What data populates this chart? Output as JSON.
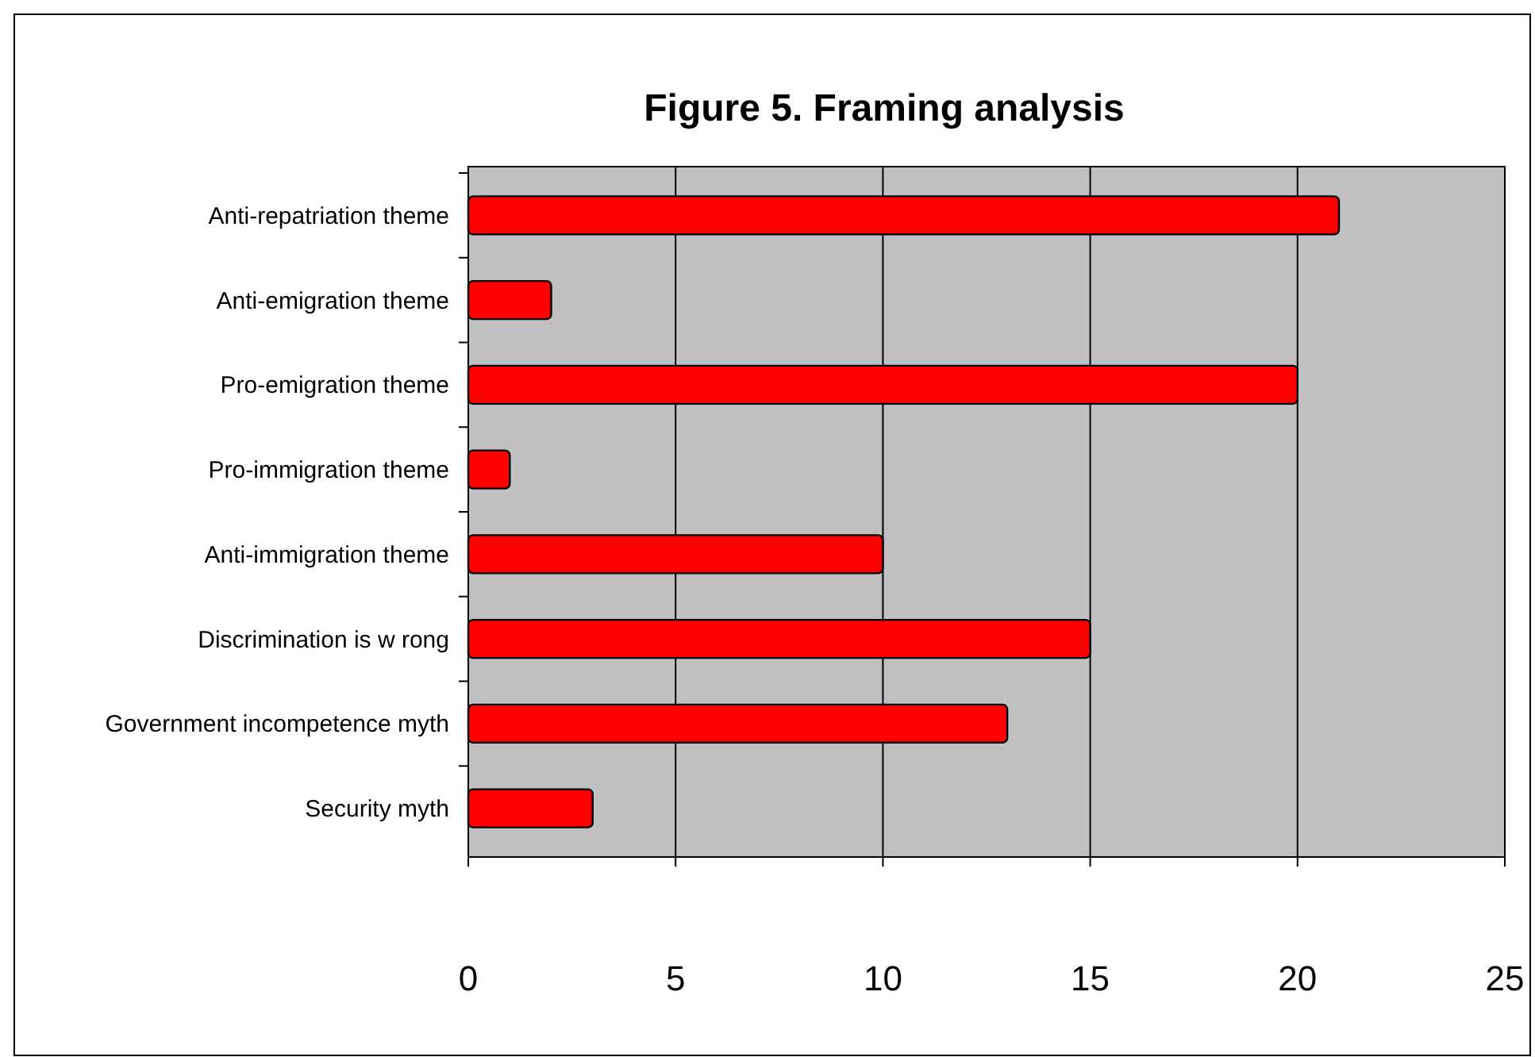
{
  "chart_data": {
    "type": "bar",
    "title": "Figure 5. Framing analysis",
    "orientation": "horizontal",
    "categories": [
      "Anti-repatriation theme",
      "Anti-emigration theme",
      "Pro-emigration theme",
      "Pro-immigration theme",
      "Anti-immigration theme",
      "Discrimination is w rong",
      "Government incompetence myth",
      "Security myth"
    ],
    "values": [
      21,
      2,
      20,
      1,
      10,
      15,
      13,
      3
    ],
    "color": "#ff0000",
    "xlim": [
      0,
      25
    ],
    "xticks": [
      0,
      5,
      10,
      15,
      20,
      25
    ],
    "grid": "x"
  }
}
